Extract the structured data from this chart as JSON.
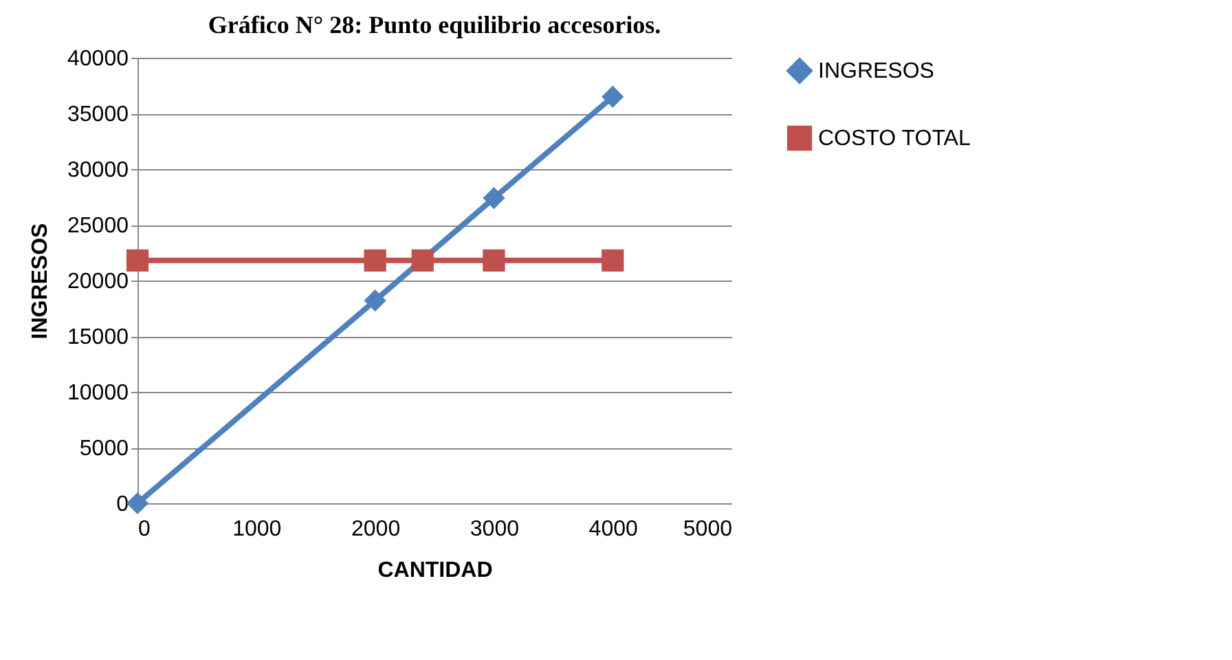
{
  "chart_data": {
    "type": "line",
    "title": "Gráfico N° 28: Punto equilibrio accesorios.",
    "xlabel": "CANTIDAD",
    "ylabel": "INGRESOS",
    "series": [
      {
        "name": "INGRESOS",
        "color": "#4f81bd",
        "marker": "diamond",
        "x": [
          0,
          2000,
          3000,
          4000
        ],
        "values": [
          0,
          18200,
          27400,
          36500
        ]
      },
      {
        "name": "COSTO TOTAL",
        "color": "#c0504d",
        "marker": "square",
        "x": [
          0,
          2000,
          2400,
          3000,
          4000
        ],
        "values": [
          21800,
          21800,
          21800,
          21800,
          21800
        ]
      }
    ],
    "xlim": [
      0,
      5000
    ],
    "xticks": [
      0,
      1000,
      2000,
      3000,
      4000,
      5000
    ],
    "ylim": [
      0,
      40000
    ],
    "yticks": [
      0,
      5000,
      10000,
      15000,
      20000,
      25000,
      30000,
      35000,
      40000
    ],
    "grid": "y",
    "legend": "right",
    "line_style": "solid"
  }
}
